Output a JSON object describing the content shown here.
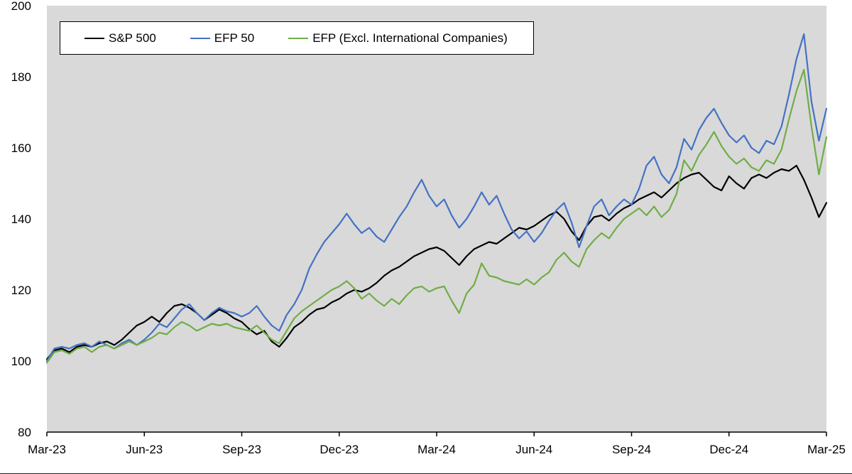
{
  "figure": {
    "background": "#ffffff",
    "plot_background": "#d9d9d9",
    "axis_color": "#000000"
  },
  "chart_data": {
    "type": "line",
    "title": "",
    "xlabel": "",
    "ylabel": "",
    "grid": false,
    "legend_position": "top-left",
    "ylim": [
      80,
      200
    ],
    "yticks": [
      80,
      100,
      120,
      140,
      160,
      180,
      200
    ],
    "xticklabels": [
      "Mar-23",
      "Jun-23",
      "Sep-23",
      "Dec-23",
      "Mar-24",
      "Jun-24",
      "Sep-24",
      "Dec-24",
      "Mar-25"
    ],
    "xtick_positions": [
      0,
      13,
      26,
      39,
      52,
      65,
      78,
      91,
      104
    ],
    "x_unit": "weeks since Mar-23",
    "series": [
      {
        "name": "S&P 500",
        "color": "#000000",
        "values": [
          100.5,
          103,
          103.5,
          102.5,
          104,
          104.5,
          104,
          105,
          105.5,
          104.5,
          106,
          108,
          110,
          111,
          112.5,
          111,
          113.5,
          115.5,
          116,
          115,
          113.5,
          111.5,
          113,
          114.5,
          113.5,
          112,
          111,
          109,
          107.5,
          108.5,
          105.5,
          104,
          106.5,
          109.5,
          111,
          113,
          114.5,
          115,
          116.5,
          117.5,
          119,
          120,
          119.5,
          120.5,
          122,
          124,
          125.5,
          126.5,
          128,
          129.5,
          130.5,
          131.5,
          132,
          131,
          129,
          127,
          129.5,
          131.5,
          132.5,
          133.5,
          133,
          134.5,
          136,
          137.5,
          137,
          138,
          139.5,
          141,
          142,
          140,
          136.5,
          134,
          138,
          140.5,
          141,
          139.5,
          141.5,
          143,
          144,
          145.5,
          146.5,
          147.5,
          146,
          148,
          150,
          151.5,
          152.5,
          153,
          151,
          149,
          148,
          152,
          150,
          148.5,
          151.5,
          152.5,
          151.5,
          153,
          154,
          153.5,
          155,
          151,
          146,
          140.5,
          144.5
        ]
      },
      {
        "name": "EFP 50",
        "color": "#4472c4",
        "values": [
          100,
          103.5,
          104,
          103.5,
          104.5,
          105,
          104,
          105.5,
          104.5,
          103.5,
          105,
          106,
          104.5,
          106,
          108,
          110.5,
          109.5,
          112,
          114.5,
          116,
          113.5,
          111.5,
          113.5,
          115,
          114,
          113.5,
          112.5,
          113.5,
          115.5,
          112.5,
          110,
          108.5,
          113,
          116,
          120,
          126,
          130,
          133.5,
          136,
          138.5,
          141.5,
          138.5,
          136,
          137.5,
          135,
          133.5,
          137,
          140.5,
          143.5,
          147.5,
          151,
          146.5,
          143.5,
          145.5,
          141,
          137.5,
          140,
          143.5,
          147.5,
          144,
          146.5,
          141.5,
          137,
          134.5,
          136.5,
          133.5,
          136,
          139.5,
          142.5,
          144.5,
          139,
          132,
          138,
          143.5,
          145.5,
          141,
          143.5,
          145.5,
          144,
          148.5,
          155,
          157.5,
          152.5,
          150,
          154.5,
          162.5,
          159.5,
          165,
          168.5,
          171,
          167,
          163.5,
          161.5,
          163.5,
          160,
          158.5,
          162,
          161,
          166,
          175,
          185,
          192,
          173,
          162,
          171
        ]
      },
      {
        "name": "EFP (Excl. International Companies)",
        "color": "#70ad47",
        "values": [
          99.5,
          102.5,
          103,
          102,
          103.5,
          104,
          102.5,
          104,
          104.5,
          103.5,
          104.5,
          105.5,
          104.5,
          105.5,
          106.5,
          108,
          107.5,
          109.5,
          111,
          110,
          108.5,
          109.5,
          110.5,
          110,
          110.5,
          109.5,
          109,
          108.5,
          110,
          108,
          106,
          105,
          108.5,
          112,
          114,
          115.5,
          117,
          118.5,
          120,
          121,
          122.5,
          120.5,
          117.5,
          119,
          117,
          115.5,
          117.5,
          116,
          118.5,
          120.5,
          121,
          119.5,
          120.5,
          121,
          117,
          113.5,
          119,
          121.5,
          127.5,
          124,
          123.5,
          122.5,
          122,
          121.5,
          123,
          121.5,
          123.5,
          125,
          128.5,
          130.5,
          128,
          126.5,
          131.5,
          134,
          136,
          134.5,
          137.5,
          140,
          141.5,
          143,
          141,
          143.5,
          140.5,
          142.5,
          147,
          156.5,
          153.5,
          158,
          161,
          164.5,
          160.5,
          157.5,
          155.5,
          157,
          154.5,
          153.5,
          156.5,
          155.5,
          159.5,
          168,
          176,
          182,
          166,
          152.5,
          163
        ]
      }
    ]
  }
}
